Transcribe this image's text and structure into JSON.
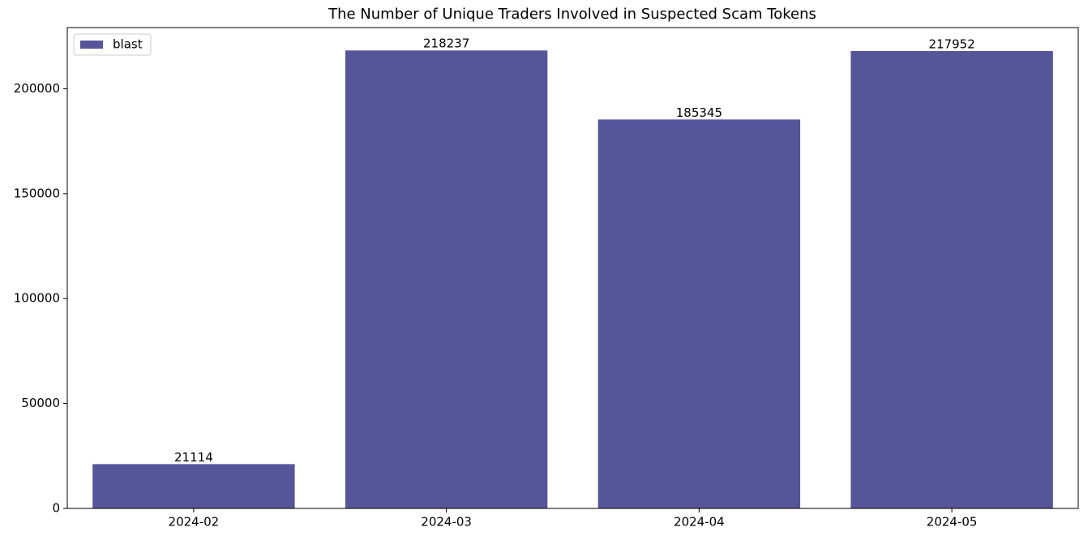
{
  "chart_data": {
    "type": "bar",
    "title": "The Number of Unique Traders Involved in Suspected Scam Tokens",
    "categories": [
      "2024-02",
      "2024-03",
      "2024-04",
      "2024-05"
    ],
    "series": [
      {
        "name": "blast",
        "color": "#56559a",
        "values": [
          21114,
          218237,
          185345,
          217952
        ]
      }
    ],
    "ylim": [
      0,
      229149
    ],
    "yticks": [
      0,
      50000,
      100000,
      150000,
      200000
    ],
    "legend": "upper left",
    "data_labels": true
  }
}
